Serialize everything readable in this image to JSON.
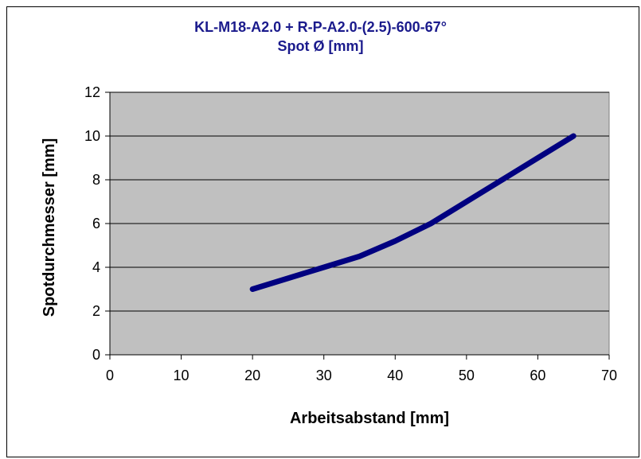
{
  "chart_data": {
    "type": "line",
    "title": "KL-M18-A2.0 + R-P-A2.0-(2.5)-600-67°",
    "subtitle": "Spot Ø [mm]",
    "xlabel": "Arbeitsabstand [mm]",
    "ylabel": "Spotdurchmesser [mm]",
    "xlim": [
      0,
      70
    ],
    "ylim": [
      0,
      12
    ],
    "xticks": [
      "0",
      "10",
      "20",
      "30",
      "40",
      "50",
      "60",
      "70"
    ],
    "yticks": [
      "0",
      "2",
      "4",
      "6",
      "8",
      "10",
      "12"
    ],
    "grid": "horizontal",
    "legend": "none",
    "series": [
      {
        "color": "#000080",
        "x": [
          20,
          25,
          30,
          35,
          40,
          45,
          50,
          55,
          60,
          65
        ],
        "y": [
          3.0,
          3.5,
          4.0,
          4.5,
          5.2,
          6.0,
          7.0,
          8.0,
          9.0,
          10.0
        ]
      }
    ],
    "colors": {
      "plot_background": "#c0c0c0",
      "title": "#1a1a8c",
      "line": "#000080"
    }
  }
}
